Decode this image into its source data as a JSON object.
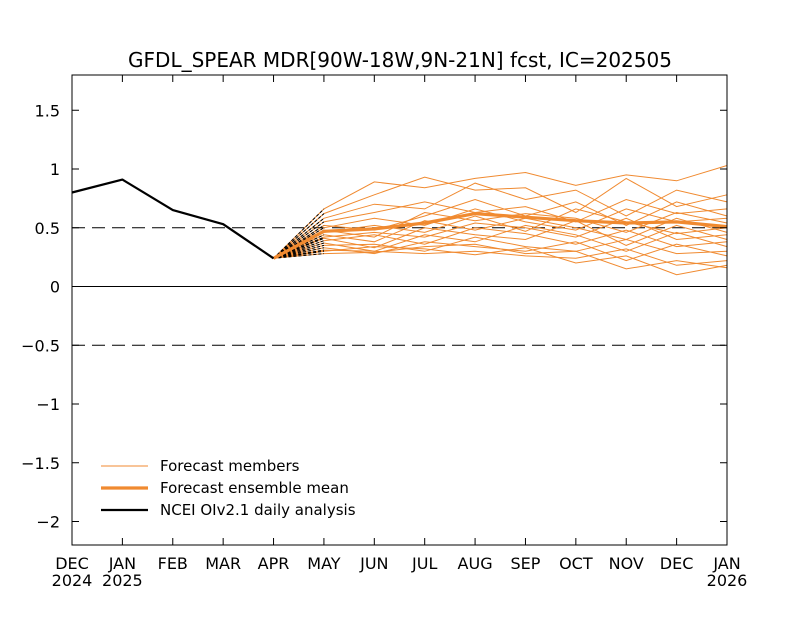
{
  "chart_data": {
    "type": "line",
    "title": "GFDL_SPEAR MDR[90W-18W,9N-21N] fcst, IC=202505",
    "xlabel": "",
    "ylabel": "",
    "ylim": [
      -2.2,
      1.8
    ],
    "yticks": [
      -2,
      -1.5,
      -1,
      -0.5,
      0,
      0.5,
      1,
      1.5
    ],
    "ytick_labels": [
      "−2",
      "−1.5",
      "−1",
      "−0.5",
      "0",
      "0.5",
      "1",
      "1.5"
    ],
    "x_months": [
      "DEC",
      "JAN",
      "FEB",
      "MAR",
      "APR",
      "MAY",
      "JUN",
      "JUL",
      "AUG",
      "SEP",
      "OCT",
      "NOV",
      "DEC",
      "JAN"
    ],
    "x_years": [
      {
        "index": 0,
        "label": "2024"
      },
      {
        "index": 1,
        "label": "2025"
      },
      {
        "index": 13,
        "label": "2026"
      }
    ],
    "reference_lines": [
      {
        "y": 0,
        "style": "solid"
      },
      {
        "y": 0.5,
        "style": "dashed"
      },
      {
        "y": -0.5,
        "style": "dashed"
      }
    ],
    "legend": {
      "position": "bottom-left",
      "entries": [
        {
          "label": "Forecast members",
          "color": "#f08a30",
          "width": "thin"
        },
        {
          "label": "Forecast ensemble mean",
          "color": "#f08a30",
          "width": "thick"
        },
        {
          "label": "NCEI OIv2.1 daily analysis",
          "color": "#000000",
          "width": "thick"
        }
      ]
    },
    "colors": {
      "forecast": "#f08a30",
      "analysis": "#000000"
    },
    "series": [
      {
        "name": "NCEI OIv2.1 daily analysis",
        "x": [
          0,
          1,
          2,
          3,
          4
        ],
        "values": [
          0.8,
          0.91,
          0.65,
          0.53,
          0.24
        ]
      },
      {
        "name": "Forecast ensemble mean",
        "x": [
          4,
          5,
          6,
          7,
          8,
          9,
          10,
          11,
          12,
          13
        ],
        "values": [
          0.24,
          0.47,
          0.49,
          0.54,
          0.62,
          0.59,
          0.56,
          0.54,
          0.55,
          0.51
        ]
      }
    ],
    "members_x": [
      4,
      5,
      6,
      7,
      8,
      9,
      10,
      11,
      12,
      13
    ],
    "members": [
      [
        0.24,
        0.66,
        0.89,
        0.84,
        0.92,
        0.97,
        0.86,
        0.95,
        0.9,
        1.03
      ],
      [
        0.24,
        0.62,
        0.78,
        0.93,
        0.82,
        0.84,
        0.63,
        0.92,
        0.68,
        0.78
      ],
      [
        0.24,
        0.58,
        0.7,
        0.66,
        0.88,
        0.74,
        0.82,
        0.6,
        0.82,
        0.72
      ],
      [
        0.24,
        0.55,
        0.63,
        0.72,
        0.63,
        0.68,
        0.55,
        0.74,
        0.62,
        0.66
      ],
      [
        0.24,
        0.52,
        0.48,
        0.6,
        0.74,
        0.6,
        0.72,
        0.52,
        0.72,
        0.6
      ],
      [
        0.24,
        0.5,
        0.58,
        0.52,
        0.66,
        0.55,
        0.48,
        0.66,
        0.55,
        0.58
      ],
      [
        0.24,
        0.48,
        0.42,
        0.63,
        0.56,
        0.62,
        0.58,
        0.46,
        0.63,
        0.54
      ],
      [
        0.24,
        0.46,
        0.52,
        0.46,
        0.6,
        0.47,
        0.66,
        0.55,
        0.45,
        0.5
      ],
      [
        0.24,
        0.44,
        0.38,
        0.56,
        0.48,
        0.58,
        0.5,
        0.4,
        0.58,
        0.46
      ],
      [
        0.24,
        0.42,
        0.46,
        0.42,
        0.54,
        0.5,
        0.42,
        0.58,
        0.4,
        0.44
      ],
      [
        0.24,
        0.41,
        0.33,
        0.5,
        0.44,
        0.4,
        0.56,
        0.35,
        0.52,
        0.4
      ],
      [
        0.24,
        0.39,
        0.44,
        0.36,
        0.5,
        0.45,
        0.36,
        0.48,
        0.34,
        0.38
      ],
      [
        0.24,
        0.37,
        0.3,
        0.44,
        0.38,
        0.52,
        0.44,
        0.3,
        0.46,
        0.34
      ],
      [
        0.24,
        0.35,
        0.36,
        0.3,
        0.42,
        0.34,
        0.3,
        0.4,
        0.28,
        0.3
      ],
      [
        0.24,
        0.33,
        0.28,
        0.38,
        0.34,
        0.3,
        0.38,
        0.22,
        0.36,
        0.26
      ],
      [
        0.24,
        0.31,
        0.3,
        0.28,
        0.3,
        0.26,
        0.24,
        0.32,
        0.18,
        0.22
      ],
      [
        0.24,
        0.3,
        0.34,
        0.32,
        0.27,
        0.33,
        0.2,
        0.26,
        0.1,
        0.18
      ],
      [
        0.24,
        0.28,
        0.29,
        0.34,
        0.36,
        0.28,
        0.3,
        0.15,
        0.22,
        0.16
      ]
    ]
  }
}
